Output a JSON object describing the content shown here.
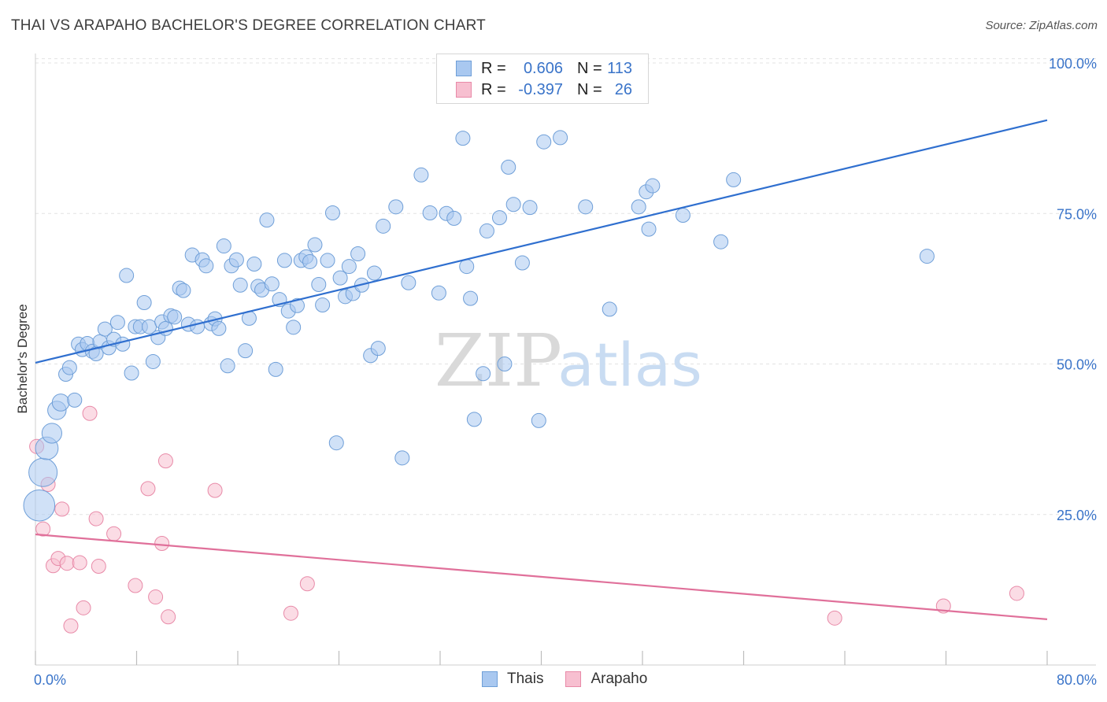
{
  "header": {
    "title": "THAI VS ARAPAHO BACHELOR'S DEGREE CORRELATION CHART",
    "source": "Source: ZipAtlas.com"
  },
  "legend_top": {
    "rows": [
      {
        "r_label": "R =",
        "r_value": "0.606",
        "n_label": "N =",
        "n_value": "113"
      },
      {
        "r_label": "R =",
        "r_value": "-0.397",
        "n_label": "N =",
        "n_value": "26"
      }
    ]
  },
  "legend_bottom": {
    "items": [
      "Thais",
      "Arapaho"
    ]
  },
  "watermark": {
    "zip": "ZIP",
    "atlas": "atlas"
  },
  "colors": {
    "thais_fill": "#a9c8f0",
    "thais_stroke": "#6f9fd8",
    "thais_line": "#2f6fcf",
    "arapaho_fill": "#f7bfd0",
    "arapaho_stroke": "#e88aa8",
    "arapaho_line": "#e0709a",
    "tick_label": "#3a74c9",
    "grid": "#e3e3e3"
  },
  "chart_data": {
    "type": "scatter",
    "xlabel": "",
    "ylabel": "Bachelor's Degree",
    "xlim": [
      0,
      80
    ],
    "ylim": [
      0,
      100
    ],
    "x_tick_labels": [
      "0.0%",
      "80.0%"
    ],
    "y_ticks": [
      25,
      50,
      75,
      100
    ],
    "y_tick_labels": [
      "25.0%",
      "50.0%",
      "75.0%",
      "100.0%"
    ],
    "grid": true,
    "legend_position": "top-center",
    "series": [
      {
        "name": "Thais",
        "trend": {
          "x": [
            0,
            80
          ],
          "y": [
            50.2,
            90.5
          ]
        },
        "points": [
          [
            0.3,
            26.5,
            2.2
          ],
          [
            0.6,
            32,
            2.0
          ],
          [
            0.9,
            36,
            1.6
          ],
          [
            1.3,
            38.5,
            1.4
          ],
          [
            1.7,
            42.3,
            1.3
          ],
          [
            2.0,
            43.6,
            1.2
          ],
          [
            2.4,
            48.3,
            1.0
          ],
          [
            2.7,
            49.4,
            1.0
          ],
          [
            3.1,
            44,
            1.0
          ],
          [
            3.4,
            53.3,
            1.0
          ],
          [
            3.7,
            52.4,
            1.0
          ],
          [
            4.1,
            53.4,
            1.0
          ],
          [
            4.5,
            52.1,
            1.0
          ],
          [
            4.8,
            51.7,
            1.0
          ],
          [
            5.1,
            53.7,
            1.0
          ],
          [
            5.5,
            55.8,
            1.0
          ],
          [
            5.8,
            52.7,
            1.0
          ],
          [
            6.2,
            54.1,
            1.0
          ],
          [
            6.5,
            56.9,
            1.0
          ],
          [
            6.9,
            53.3,
            1.0
          ],
          [
            7.2,
            64.7,
            1.0
          ],
          [
            7.6,
            48.5,
            1.0
          ],
          [
            7.9,
            56.2,
            1.0
          ],
          [
            8.3,
            56.2,
            1.0
          ],
          [
            8.6,
            60.2,
            1.0
          ],
          [
            9.0,
            56.2,
            1.0
          ],
          [
            9.3,
            50.4,
            1.0
          ],
          [
            9.7,
            54.4,
            1.0
          ],
          [
            10.0,
            57,
            1.0
          ],
          [
            10.3,
            55.9,
            1.0
          ],
          [
            10.7,
            58,
            1.0
          ],
          [
            11.0,
            57.8,
            1.0
          ],
          [
            11.4,
            62.6,
            1.0
          ],
          [
            11.7,
            62.2,
            1.0
          ],
          [
            12.1,
            56.6,
            1.0
          ],
          [
            12.4,
            68.1,
            1.0
          ],
          [
            12.8,
            56.2,
            1.0
          ],
          [
            13.2,
            67.3,
            1.0
          ],
          [
            13.5,
            66.3,
            1.0
          ],
          [
            13.9,
            56.7,
            1.0
          ],
          [
            14.2,
            57.5,
            1.0
          ],
          [
            14.5,
            55.9,
            1.0
          ],
          [
            14.9,
            69.6,
            1.0
          ],
          [
            15.2,
            49.7,
            1.0
          ],
          [
            15.5,
            66.3,
            1.0
          ],
          [
            15.9,
            67.3,
            1.0
          ],
          [
            16.2,
            63.1,
            1.0
          ],
          [
            16.6,
            52.2,
            1.0
          ],
          [
            16.9,
            57.6,
            1.0
          ],
          [
            17.3,
            66.6,
            1.0
          ],
          [
            17.6,
            62.9,
            1.0
          ],
          [
            17.9,
            62.3,
            1.0
          ],
          [
            18.3,
            73.9,
            1.0
          ],
          [
            18.7,
            63.3,
            1.0
          ],
          [
            19.0,
            49.1,
            1.0
          ],
          [
            19.3,
            60.7,
            1.0
          ],
          [
            19.7,
            67.2,
            1.0
          ],
          [
            20.0,
            58.8,
            1.0
          ],
          [
            20.4,
            56.1,
            1.0
          ],
          [
            20.7,
            59.7,
            1.0
          ],
          [
            21.0,
            67.2,
            1.0
          ],
          [
            21.4,
            67.8,
            1.0
          ],
          [
            21.7,
            67,
            1.0
          ],
          [
            22.1,
            69.8,
            1.0
          ],
          [
            22.4,
            63.2,
            1.0
          ],
          [
            22.7,
            59.8,
            1.0
          ],
          [
            23.1,
            67.2,
            1.0
          ],
          [
            23.5,
            75.1,
            1.0
          ],
          [
            23.8,
            36.9,
            1.0
          ],
          [
            24.1,
            64.3,
            1.0
          ],
          [
            24.5,
            61.2,
            1.0
          ],
          [
            24.8,
            66.2,
            1.0
          ],
          [
            25.1,
            61.7,
            1.0
          ],
          [
            25.5,
            68.3,
            1.0
          ],
          [
            25.8,
            63.1,
            1.0
          ],
          [
            26.5,
            51.4,
            1.0
          ],
          [
            26.8,
            65.1,
            1.0
          ],
          [
            27.1,
            52.6,
            1.0
          ],
          [
            27.5,
            72.9,
            1.0
          ],
          [
            28.5,
            76.1,
            1.0
          ],
          [
            29.0,
            34.4,
            1.0
          ],
          [
            29.5,
            63.5,
            1.0
          ],
          [
            30.5,
            81.4,
            1.0
          ],
          [
            31.2,
            75.1,
            1.0
          ],
          [
            31.9,
            61.8,
            1.0
          ],
          [
            32.5,
            75,
            1.0
          ],
          [
            33.1,
            74.2,
            1.0
          ],
          [
            33.8,
            87.5,
            1.0
          ],
          [
            34.1,
            66.2,
            1.0
          ],
          [
            34.4,
            60.9,
            1.0
          ],
          [
            34.7,
            40.8,
            1.0
          ],
          [
            35.4,
            48.4,
            1.0
          ],
          [
            35.7,
            72.1,
            1.0
          ],
          [
            36.7,
            74.3,
            1.0
          ],
          [
            37.1,
            50,
            1.0
          ],
          [
            37.4,
            82.7,
            1.0
          ],
          [
            37.8,
            76.5,
            1.0
          ],
          [
            38.5,
            66.8,
            1.0
          ],
          [
            39.1,
            76,
            1.0
          ],
          [
            40.2,
            86.9,
            1.0
          ],
          [
            39.8,
            40.6,
            1.0
          ],
          [
            41.5,
            87.6,
            1.0
          ],
          [
            43.5,
            76.1,
            1.0
          ],
          [
            45.4,
            59.1,
            1.0
          ],
          [
            47.7,
            76.1,
            1.0
          ],
          [
            48.3,
            78.6,
            1.0
          ],
          [
            48.8,
            79.6,
            1.0
          ],
          [
            48.5,
            72.4,
            1.0
          ],
          [
            51.2,
            74.7,
            1.0
          ],
          [
            54.2,
            70.3,
            1.0
          ],
          [
            55.2,
            80.6,
            1.0
          ],
          [
            70.5,
            67.9,
            1.0
          ],
          [
            53.0,
            72.0,
            0.0
          ]
        ]
      },
      {
        "name": "Arapaho",
        "trend": {
          "x": [
            0,
            80
          ],
          "y": [
            21.7,
            7.6
          ]
        },
        "points": [
          [
            0.1,
            36.3,
            1.0
          ],
          [
            0.6,
            22.6,
            1.0
          ],
          [
            1.0,
            30,
            1.0
          ],
          [
            1.4,
            16.5,
            1.0
          ],
          [
            1.8,
            17.7,
            1.0
          ],
          [
            2.1,
            25.9,
            1.0
          ],
          [
            2.5,
            16.9,
            1.0
          ],
          [
            2.8,
            6.5,
            1.0
          ],
          [
            3.5,
            17,
            1.0
          ],
          [
            3.8,
            9.5,
            1.0
          ],
          [
            4.3,
            41.8,
            1.0
          ],
          [
            4.8,
            24.3,
            1.0
          ],
          [
            5.0,
            16.4,
            1.0
          ],
          [
            6.2,
            21.8,
            1.0
          ],
          [
            7.9,
            13.2,
            1.0
          ],
          [
            8.9,
            29.3,
            1.0
          ],
          [
            9.5,
            11.3,
            1.0
          ],
          [
            10.0,
            20.2,
            1.0
          ],
          [
            10.3,
            33.9,
            1.0
          ],
          [
            10.5,
            8,
            1.0
          ],
          [
            14.2,
            29,
            1.0
          ],
          [
            20.2,
            8.6,
            1.0
          ],
          [
            21.5,
            13.5,
            1.0
          ],
          [
            63.2,
            7.8,
            1.0
          ],
          [
            71.8,
            9.8,
            1.0
          ],
          [
            77.6,
            11.9,
            1.0
          ]
        ]
      }
    ]
  }
}
